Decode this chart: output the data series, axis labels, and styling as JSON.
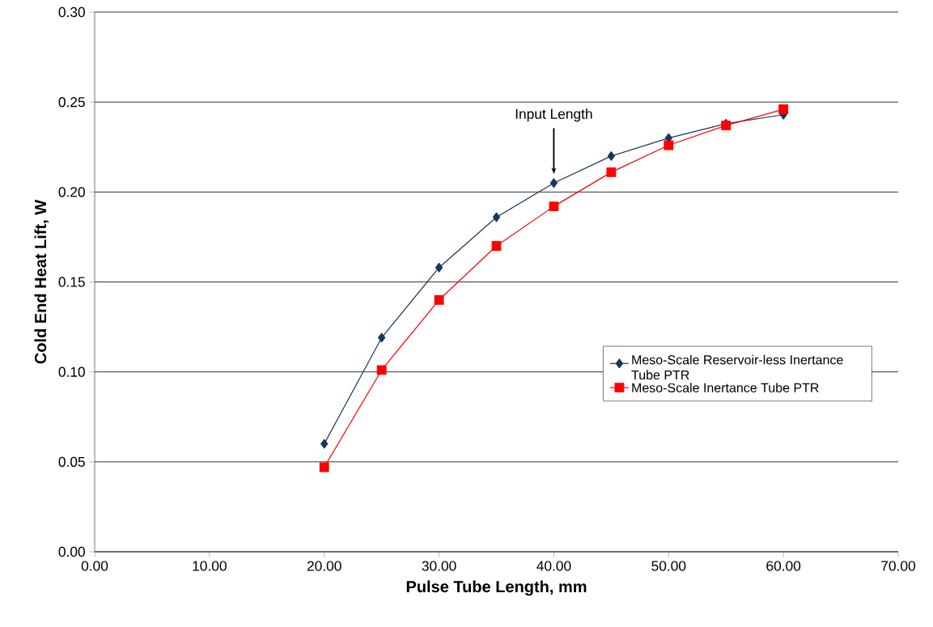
{
  "chart_data": {
    "type": "line",
    "xlabel": "Pulse Tube Length, mm",
    "ylabel": "Cold End Heat Lift, W",
    "x": [
      20,
      25,
      30,
      35,
      40,
      45,
      50,
      55,
      60
    ],
    "series": [
      {
        "name": "Meso-Scale Reservoir-less Inertance Tube PTR",
        "color": "#17375e",
        "marker": "diamond",
        "values": [
          0.06,
          0.119,
          0.158,
          0.186,
          0.205,
          0.22,
          0.23,
          0.238,
          0.243
        ]
      },
      {
        "name": "Meso-Scale Inertance Tube PTR",
        "color": "#ff0000",
        "marker": "square",
        "values": [
          0.047,
          0.101,
          0.14,
          0.17,
          0.192,
          0.211,
          0.226,
          0.237,
          0.246
        ]
      }
    ],
    "xlim": [
      0,
      70
    ],
    "xticks": [
      {
        "value": 0,
        "label": "0.00"
      },
      {
        "value": 10,
        "label": "10.00"
      },
      {
        "value": 20,
        "label": "20.00"
      },
      {
        "value": 30,
        "label": "30.00"
      },
      {
        "value": 40,
        "label": "40.00"
      },
      {
        "value": 50,
        "label": "50.00"
      },
      {
        "value": 60,
        "label": "60.00"
      },
      {
        "value": 70,
        "label": "70.00"
      }
    ],
    "ylim": [
      0,
      0.3
    ],
    "yticks": [
      {
        "value": 0,
        "label": "0.00"
      },
      {
        "value": 0.05,
        "label": "0.05"
      },
      {
        "value": 0.1,
        "label": "0.10"
      },
      {
        "value": 0.15,
        "label": "0.15"
      },
      {
        "value": 0.2,
        "label": "0.20"
      },
      {
        "value": 0.25,
        "label": "0.25"
      },
      {
        "value": 0.3,
        "label": "0.30"
      }
    ],
    "annotations": [
      "Input Length"
    ],
    "grid": "y",
    "legend": "right",
    "line_style": "solid"
  }
}
